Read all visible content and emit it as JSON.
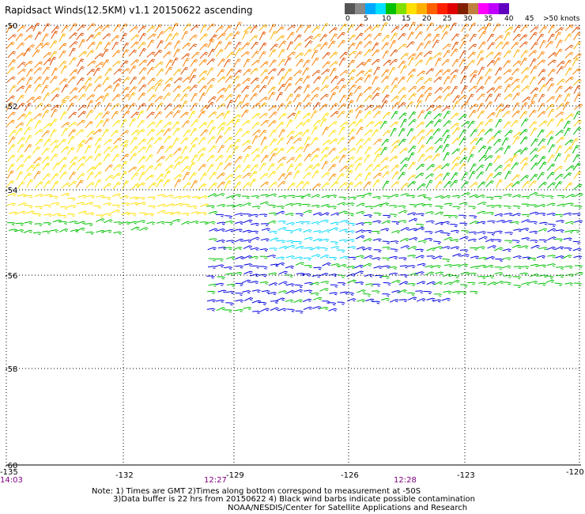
{
  "title": "Rapidsact Winds(12.5KM) v1.1 20150622 ascending",
  "legend": {
    "colors": [
      "#555555",
      "#888888",
      "#00a8ff",
      "#00e0ff",
      "#00c000",
      "#80e000",
      "#ffe000",
      "#ffb000",
      "#ff6000",
      "#ff2000",
      "#e00000",
      "#802000",
      "#c08040",
      "#ff00ff",
      "#c000ff",
      "#6000c0"
    ],
    "labels": [
      "0",
      "5",
      "10",
      "15",
      "20",
      "25",
      "30",
      "35",
      "40",
      "45",
      ">50 knots"
    ]
  },
  "axes": {
    "lat_labels": [
      "-50",
      "-52",
      "-54",
      "-56",
      "-58",
      "-60"
    ],
    "lon_labels": [
      "-135",
      "-132",
      "-129",
      "-126",
      "-123",
      "-120"
    ],
    "time_labels": [
      "14:03",
      "12:27",
      "12:28"
    ]
  },
  "notes": {
    "line1": "Note: 1) Times are GMT 2)Times along bottom correspond to measurement at -50S",
    "line2": "3)Data buffer is 22 hrs from 20150622 4) Black wind barbs indicate possible contamination",
    "line3": "NOAA/NESDIS/Center for Satellite Applications and Research"
  },
  "icons": {
    "barb": "wind-barb-icon"
  }
}
